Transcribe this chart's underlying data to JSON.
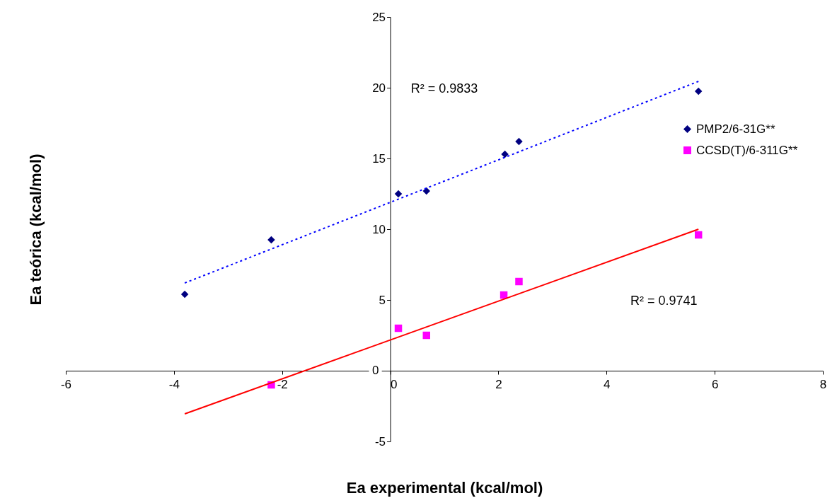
{
  "chart_data": {
    "type": "scatter",
    "xlabel": "Ea experimental (kcal/mol)",
    "ylabel": "Ea teórica (kcal/mol)",
    "xlim": [
      -6,
      8
    ],
    "xticks": [
      -6,
      -4,
      -2,
      0,
      2,
      4,
      6,
      8
    ],
    "ylim": [
      -5,
      25
    ],
    "yticks": [
      -5,
      0,
      5,
      10,
      15,
      20,
      25
    ],
    "grid": false,
    "legend": "right",
    "series": [
      {
        "name": "PMP2/6-31G**",
        "marker": "diamond",
        "color": "#000080",
        "x": [
          -3.8,
          -2.2,
          0.15,
          0.67,
          2.12,
          2.38,
          5.7
        ],
        "values": [
          5.4,
          9.25,
          12.5,
          12.7,
          15.3,
          16.2,
          19.75
        ]
      },
      {
        "name": "CCSD(T)/6-311G**",
        "marker": "square",
        "color": "#ff00ff",
        "x": [
          -2.2,
          0.15,
          0.67,
          2.1,
          2.38,
          5.7
        ],
        "values": [
          -1.0,
          3.0,
          2.5,
          5.35,
          6.3,
          9.6
        ]
      },
      {
        "type": "line",
        "marker": "none",
        "line_style": "dotted",
        "color": "#0000ff",
        "x": [
          -3.8,
          5.7
        ],
        "values": [
          6.2,
          20.45
        ]
      },
      {
        "type": "line",
        "marker": "none",
        "line_style": "solid",
        "color": "#ff0000",
        "x": [
          -3.8,
          5.7
        ],
        "values": [
          -3.05,
          10.0
        ]
      }
    ],
    "annotations": [
      "R² = 0.9833",
      "R² = 0.9741"
    ]
  }
}
